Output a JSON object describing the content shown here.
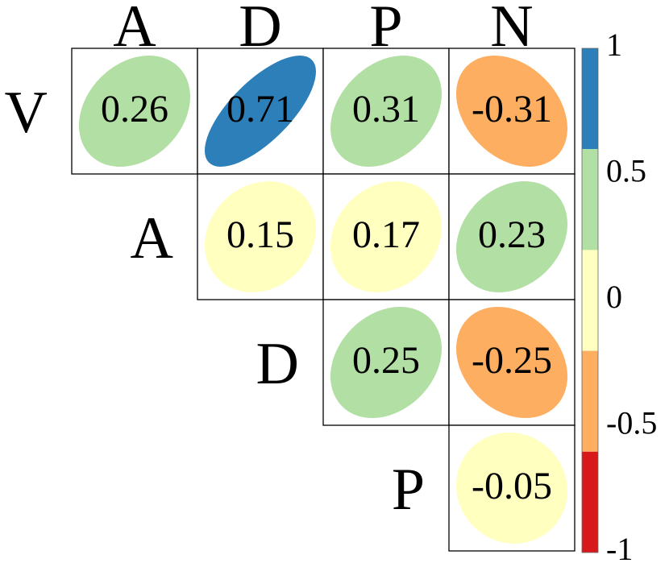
{
  "chart_data": {
    "type": "heatmap",
    "variables": [
      "V",
      "A",
      "D",
      "P",
      "N"
    ],
    "column_labels": [
      "A",
      "D",
      "P",
      "N"
    ],
    "row_labels": [
      "V",
      "A",
      "D",
      "P"
    ],
    "cells": [
      {
        "row": "V",
        "col": "A",
        "value": 0.26,
        "label": "0.26"
      },
      {
        "row": "V",
        "col": "D",
        "value": 0.71,
        "label": "0.71"
      },
      {
        "row": "V",
        "col": "P",
        "value": 0.31,
        "label": "0.31"
      },
      {
        "row": "V",
        "col": "N",
        "value": -0.31,
        "label": "-0.31"
      },
      {
        "row": "A",
        "col": "D",
        "value": 0.15,
        "label": "0.15"
      },
      {
        "row": "A",
        "col": "P",
        "value": 0.17,
        "label": "0.17"
      },
      {
        "row": "A",
        "col": "N",
        "value": 0.23,
        "label": "0.23"
      },
      {
        "row": "D",
        "col": "P",
        "value": 0.25,
        "label": "0.25"
      },
      {
        "row": "D",
        "col": "N",
        "value": -0.25,
        "label": "-0.25"
      },
      {
        "row": "P",
        "col": "N",
        "value": -0.05,
        "label": "-0.05"
      }
    ],
    "colorbar": {
      "range": [
        -1,
        1
      ],
      "ticks": [
        "1",
        "0.5",
        "0",
        "-0.5",
        "-1"
      ],
      "bins": [
        {
          "from": 0.6,
          "to": 1.0,
          "color": "#2c7fb8"
        },
        {
          "from": 0.2,
          "to": 0.6,
          "color": "#b2dfa3"
        },
        {
          "from": -0.2,
          "to": 0.2,
          "color": "#ffffc0"
        },
        {
          "from": -0.6,
          "to": -0.2,
          "color": "#fdae61"
        },
        {
          "from": -1.0,
          "to": -0.6,
          "color": "#d7191c"
        }
      ]
    },
    "title": "",
    "xlabel": "",
    "ylabel": ""
  }
}
